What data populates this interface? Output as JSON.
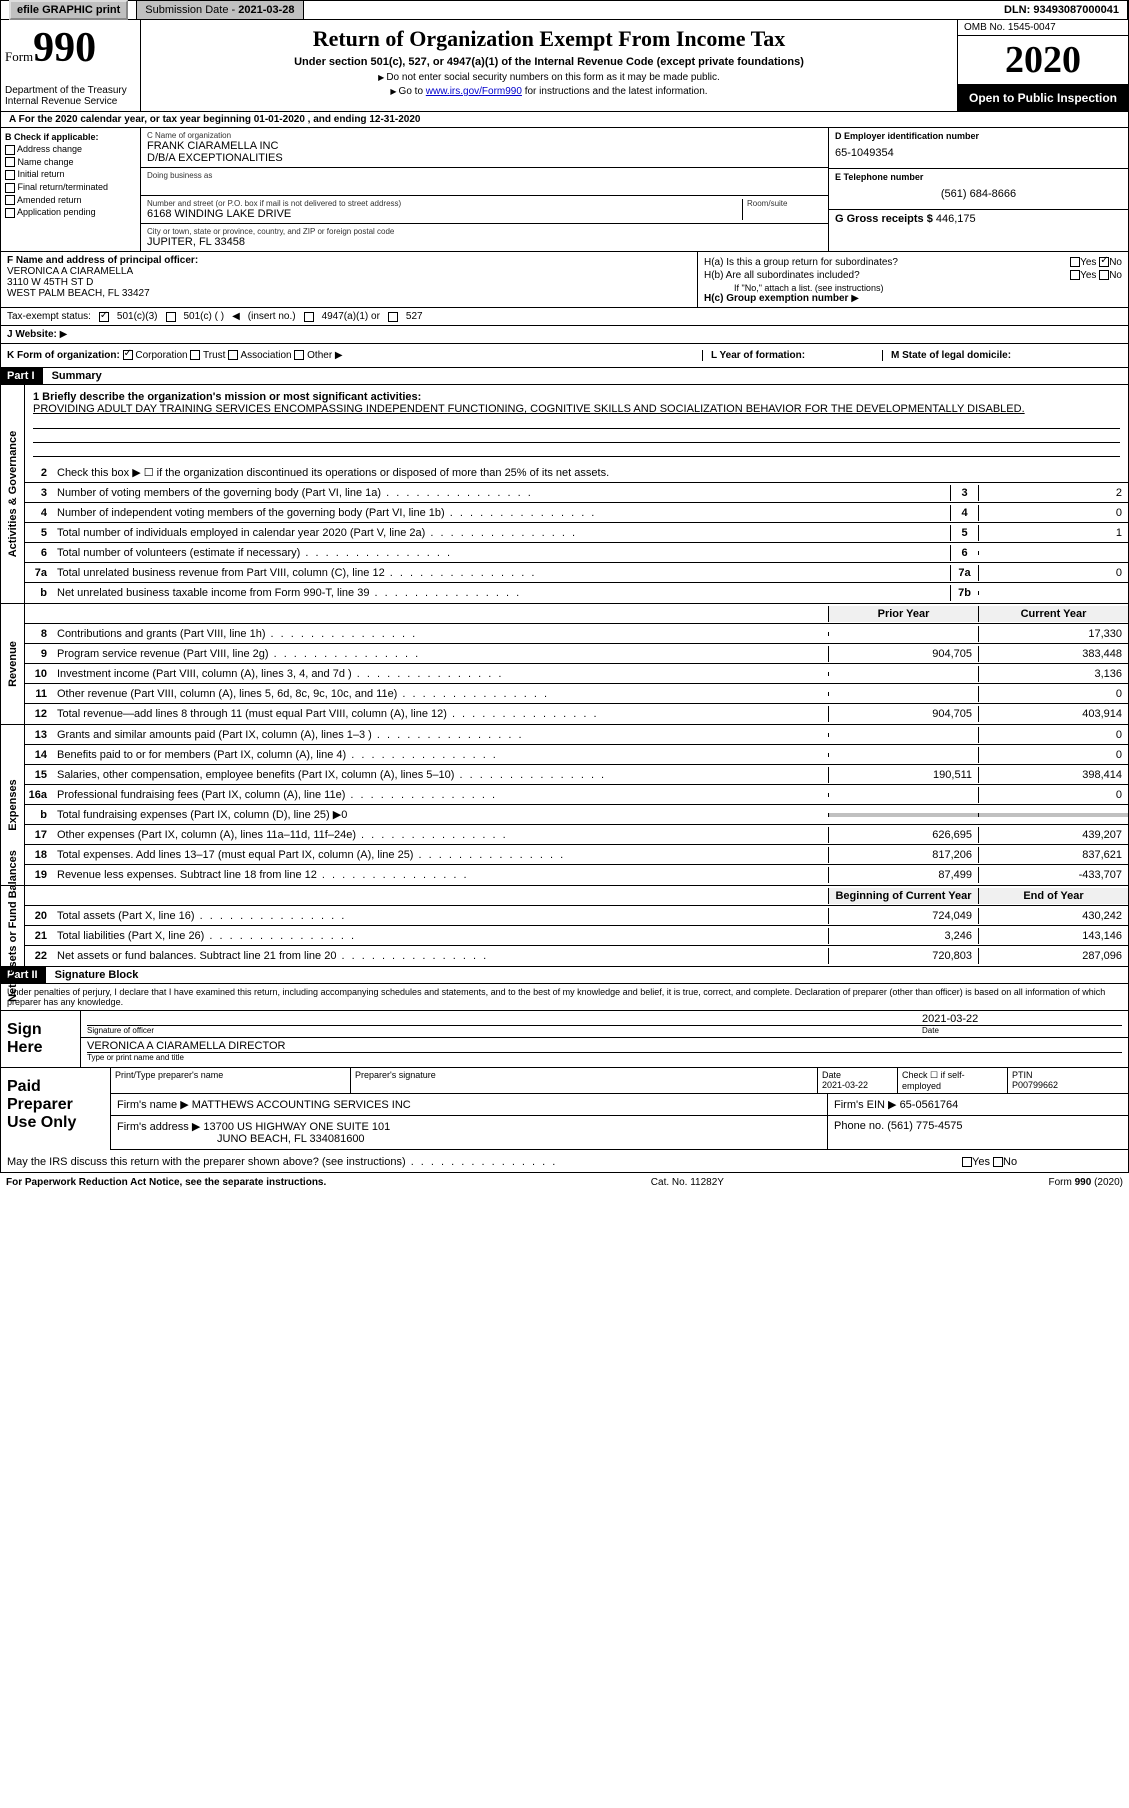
{
  "top": {
    "efile": "efile GRAPHIC print",
    "sub_date_lbl": "Submission Date - ",
    "sub_date": "2021-03-28",
    "dln": "DLN: 93493087000041"
  },
  "header": {
    "form_prefix": "Form",
    "form_num": "990",
    "dept": "Department of the Treasury",
    "irs": "Internal Revenue Service",
    "title": "Return of Organization Exempt From Income Tax",
    "subtitle": "Under section 501(c), 527, or 4947(a)(1) of the Internal Revenue Code (except private foundations)",
    "note1": "Do not enter social security numbers on this form as it may be made public.",
    "note2_pre": "Go to ",
    "note2_link": "www.irs.gov/Form990",
    "note2_post": " for instructions and the latest information.",
    "omb": "OMB No. 1545-0047",
    "year": "2020",
    "inspect": "Open to Public Inspection"
  },
  "row_a": "A For the 2020 calendar year, or tax year beginning 01-01-2020   , and ending 12-31-2020",
  "b": {
    "hdr": "B Check if applicable:",
    "items": [
      "Address change",
      "Name change",
      "Initial return",
      "Final return/terminated",
      "Amended return",
      "Application pending"
    ]
  },
  "c": {
    "name_lbl": "C Name of organization",
    "name": "FRANK CIARAMELLA INC",
    "dba": "D/B/A EXCEPTIONALITIES",
    "dba_lbl": "Doing business as",
    "addr_lbl": "Number and street (or P.O. box if mail is not delivered to street address)",
    "room_lbl": "Room/suite",
    "addr": "6168 WINDING LAKE DRIVE",
    "city_lbl": "City or town, state or province, country, and ZIP or foreign postal code",
    "city": "JUPITER, FL  33458"
  },
  "d": {
    "ein_lbl": "D Employer identification number",
    "ein": "65-1049354",
    "tel_lbl": "E Telephone number",
    "tel": "(561) 684-8666",
    "gross_lbl": "G Gross receipts $ ",
    "gross": "446,175"
  },
  "f": {
    "lbl": "F  Name and address of principal officer:",
    "name": "VERONICA A CIARAMELLA",
    "addr1": "3110 W 45TH ST D",
    "addr2": "WEST PALM BEACH, FL  33427"
  },
  "h": {
    "a_lbl": "H(a)  Is this a group return for subordinates?",
    "b_lbl": "H(b)  Are all subordinates included?",
    "b_note": "If \"No,\" attach a list. (see instructions)",
    "c_lbl": "H(c)  Group exemption number"
  },
  "tax": {
    "lbl": "Tax-exempt status:",
    "o1": "501(c)(3)",
    "o2": "501(c) (  )",
    "o2b": "(insert no.)",
    "o3": "4947(a)(1) or",
    "o4": "527"
  },
  "web_lbl": "J   Website:",
  "k": {
    "lbl": "K Form of organization:",
    "o1": "Corporation",
    "o2": "Trust",
    "o3": "Association",
    "o4": "Other",
    "l": "L Year of formation:",
    "m": "M State of legal domicile:"
  },
  "part1": {
    "hdr": "Part I",
    "title": "Summary"
  },
  "mission": {
    "lbl": "1  Briefly describe the organization's mission or most significant activities:",
    "txt": "PROVIDING ADULT DAY TRAINING SERVICES ENCOMPASSING INDEPENDENT FUNCTIONING, COGNITIVE SKILLS AND SOCIALIZATION BEHAVIOR FOR THE DEVELOPMENTALLY DISABLED."
  },
  "gov_lines": [
    {
      "n": "2",
      "t": "Check this box ▶ ☐  if the organization discontinued its operations or disposed of more than 25% of its net assets."
    },
    {
      "n": "3",
      "t": "Number of voting members of the governing body (Part VI, line 1a)",
      "e": "3",
      "v": "2"
    },
    {
      "n": "4",
      "t": "Number of independent voting members of the governing body (Part VI, line 1b)",
      "e": "4",
      "v": "0"
    },
    {
      "n": "5",
      "t": "Total number of individuals employed in calendar year 2020 (Part V, line 2a)",
      "e": "5",
      "v": "1"
    },
    {
      "n": "6",
      "t": "Total number of volunteers (estimate if necessary)",
      "e": "6",
      "v": ""
    },
    {
      "n": "7a",
      "t": "Total unrelated business revenue from Part VIII, column (C), line 12",
      "e": "7a",
      "v": "0"
    },
    {
      "n": "b",
      "t": "Net unrelated business taxable income from Form 990-T, line 39",
      "e": "7b",
      "v": ""
    }
  ],
  "col_hdrs": {
    "prior": "Prior Year",
    "curr": "Current Year"
  },
  "rev_lines": [
    {
      "n": "8",
      "t": "Contributions and grants (Part VIII, line 1h)",
      "p": "",
      "c": "17,330"
    },
    {
      "n": "9",
      "t": "Program service revenue (Part VIII, line 2g)",
      "p": "904,705",
      "c": "383,448"
    },
    {
      "n": "10",
      "t": "Investment income (Part VIII, column (A), lines 3, 4, and 7d )",
      "p": "",
      "c": "3,136"
    },
    {
      "n": "11",
      "t": "Other revenue (Part VIII, column (A), lines 5, 6d, 8c, 9c, 10c, and 11e)",
      "p": "",
      "c": "0"
    },
    {
      "n": "12",
      "t": "Total revenue—add lines 8 through 11 (must equal Part VIII, column (A), line 12)",
      "p": "904,705",
      "c": "403,914"
    }
  ],
  "exp_lines": [
    {
      "n": "13",
      "t": "Grants and similar amounts paid (Part IX, column (A), lines 1–3 )",
      "p": "",
      "c": "0"
    },
    {
      "n": "14",
      "t": "Benefits paid to or for members (Part IX, column (A), line 4)",
      "p": "",
      "c": "0"
    },
    {
      "n": "15",
      "t": "Salaries, other compensation, employee benefits (Part IX, column (A), lines 5–10)",
      "p": "190,511",
      "c": "398,414"
    },
    {
      "n": "16a",
      "t": "Professional fundraising fees (Part IX, column (A), line 11e)",
      "p": "",
      "c": "0"
    },
    {
      "n": "b",
      "t": "Total fundraising expenses (Part IX, column (D), line 25) ▶0",
      "gray": true
    },
    {
      "n": "17",
      "t": "Other expenses (Part IX, column (A), lines 11a–11d, 11f–24e)",
      "p": "626,695",
      "c": "439,207"
    },
    {
      "n": "18",
      "t": "Total expenses. Add lines 13–17 (must equal Part IX, column (A), line 25)",
      "p": "817,206",
      "c": "837,621"
    },
    {
      "n": "19",
      "t": "Revenue less expenses. Subtract line 18 from line 12",
      "p": "87,499",
      "c": "-433,707"
    }
  ],
  "net_hdrs": {
    "beg": "Beginning of Current Year",
    "end": "End of Year"
  },
  "net_lines": [
    {
      "n": "20",
      "t": "Total assets (Part X, line 16)",
      "p": "724,049",
      "c": "430,242"
    },
    {
      "n": "21",
      "t": "Total liabilities (Part X, line 26)",
      "p": "3,246",
      "c": "143,146"
    },
    {
      "n": "22",
      "t": "Net assets or fund balances. Subtract line 21 from line 20",
      "p": "720,803",
      "c": "287,096"
    }
  ],
  "part2": {
    "hdr": "Part II",
    "title": "Signature Block"
  },
  "sig": {
    "disc": "Under penalties of perjury, I declare that I have examined this return, including accompanying schedules and statements, and to the best of my knowledge and belief, it is true, correct, and complete. Declaration of preparer (other than officer) is based on all information of which preparer has any knowledge.",
    "here": "Sign Here",
    "sig_lbl": "Signature of officer",
    "date_lbl": "Date",
    "date": "2021-03-22",
    "name": "VERONICA A CIARAMELLA  DIRECTOR",
    "name_lbl": "Type or print name and title"
  },
  "prep": {
    "lbl": "Paid Preparer Use Only",
    "h1": "Print/Type preparer's name",
    "h2": "Preparer's signature",
    "h3": "Date",
    "h3v": "2021-03-22",
    "h4": "Check ☐  if self-employed",
    "h5": "PTIN",
    "h5v": "P00799662",
    "firm_lbl": "Firm's name",
    "firm": "MATTHEWS ACCOUNTING SERVICES INC",
    "ein_lbl": "Firm's EIN",
    "ein": "65-0561764",
    "addr_lbl": "Firm's address",
    "addr1": "13700 US HIGHWAY ONE SUITE 101",
    "addr2": "JUNO BEACH, FL  334081600",
    "phone_lbl": "Phone no.",
    "phone": "(561) 775-4575",
    "discuss": "May the IRS discuss this return with the preparer shown above? (see instructions)"
  },
  "footer": {
    "l": "For Paperwork Reduction Act Notice, see the separate instructions.",
    "m": "Cat. No. 11282Y",
    "r": "Form 990 (2020)"
  }
}
